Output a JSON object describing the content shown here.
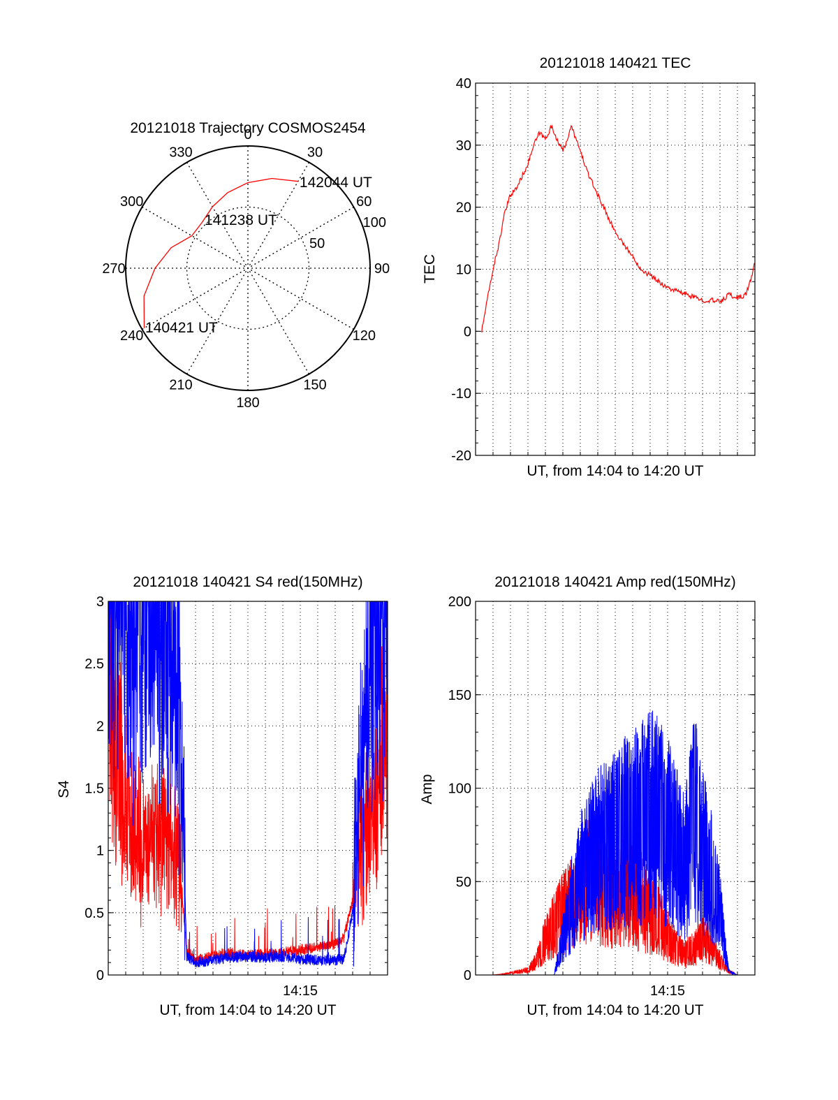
{
  "chart_data": [
    {
      "type": "polar",
      "title": "20121018 Trajectory COSMOS2454",
      "angle_labels": [
        "0",
        "30",
        "60",
        "90",
        "120",
        "150",
        "180",
        "210",
        "240",
        "270",
        "300",
        "330"
      ],
      "radius_labels": [
        "50",
        "100"
      ],
      "rlim": [
        0,
        100
      ],
      "grid": true,
      "series": [
        {
          "color": "#ff0000",
          "points": [
            {
              "az": 240,
              "r": 98
            },
            {
              "az": 255,
              "r": 88
            },
            {
              "az": 270,
              "r": 76
            },
            {
              "az": 285,
              "r": 65
            },
            {
              "az": 300,
              "r": 53
            },
            {
              "az": 315,
              "r": 53
            },
            {
              "az": 330,
              "r": 58
            },
            {
              "az": 345,
              "r": 64
            },
            {
              "az": 0,
              "r": 70
            },
            {
              "az": 15,
              "r": 76
            },
            {
              "az": 30,
              "r": 82
            }
          ]
        }
      ],
      "annotations": [
        {
          "text": "142044 UT",
          "az": 31,
          "r": 82
        },
        {
          "text": "141238 UT",
          "az": 318,
          "r": 53
        },
        {
          "text": "140421 UT",
          "az": 240,
          "r": 97
        }
      ]
    },
    {
      "type": "line",
      "title": "20121018 140421 TEC",
      "xlabel": "UT, from 14:04 to 14:20 UT",
      "ylabel": "TEC",
      "xlim": [
        "14:04",
        "14:20"
      ],
      "ylim": [
        -20,
        40
      ],
      "yticks": [
        "-20",
        "-10",
        "0",
        "10",
        "20",
        "30",
        "40"
      ],
      "grid": true,
      "series": [
        {
          "color": "#ff0000",
          "x": [
            "14:04:21",
            "14:04:40",
            "14:05:00",
            "14:05:20",
            "14:05:40",
            "14:06:00",
            "14:06:20",
            "14:06:40",
            "14:07:00",
            "14:07:20",
            "14:07:40",
            "14:08:00",
            "14:08:20",
            "14:08:40",
            "14:09:00",
            "14:09:30",
            "14:10:00",
            "14:10:30",
            "14:11:00",
            "14:11:30",
            "14:12:00",
            "14:12:30",
            "14:13:00",
            "14:13:30",
            "14:14:00",
            "14:14:30",
            "14:15:00",
            "14:15:30",
            "14:16:00",
            "14:16:30",
            "14:17:00",
            "14:17:30",
            "14:17:50",
            "14:18:10",
            "14:18:30",
            "14:18:50",
            "14:19:10",
            "14:19:30",
            "14:19:50",
            "14:20:00"
          ],
          "y": [
            0,
            5,
            10,
            14,
            19,
            22,
            23,
            25,
            27,
            30,
            32,
            31,
            33,
            31,
            29,
            33,
            29,
            25,
            22,
            19,
            16,
            14,
            12,
            10,
            9,
            8,
            7,
            6.5,
            6,
            5.5,
            5,
            5,
            4.8,
            5,
            6,
            5.5,
            5.5,
            6,
            9,
            11
          ]
        }
      ]
    },
    {
      "type": "line",
      "title": "20121018 140421 S4 red(150MHz)",
      "xlabel": "UT, from 14:04 to 14:20 UT",
      "ylabel": "S4",
      "xlim": [
        "14:04",
        "14:20"
      ],
      "ylim": [
        0,
        3
      ],
      "yticks": [
        "0",
        "0.5",
        "1",
        "1.5",
        "2",
        "2.5",
        "3"
      ],
      "xticks": [
        "14:15"
      ],
      "grid": true,
      "series": [
        {
          "color": "#ff0000",
          "x": [
            "14:04:00",
            "14:04:30",
            "14:05:00",
            "14:05:30",
            "14:06:00",
            "14:06:30",
            "14:07:00",
            "14:07:30",
            "14:08:00",
            "14:08:30",
            "14:09:00",
            "14:10:00",
            "14:11:00",
            "14:12:00",
            "14:13:00",
            "14:14:00",
            "14:15:00",
            "14:16:00",
            "14:17:00",
            "14:17:30",
            "14:18:00",
            "14:18:30",
            "14:19:00",
            "14:19:30",
            "14:20:00"
          ],
          "y": [
            2.2,
            1.8,
            1.4,
            1.2,
            1.1,
            1.05,
            1.1,
            1.2,
            1.0,
            0.2,
            0.12,
            0.15,
            0.18,
            0.16,
            0.17,
            0.18,
            0.2,
            0.22,
            0.25,
            0.3,
            0.6,
            1.0,
            1.3,
            1.6,
            1.9
          ]
        },
        {
          "color": "#0000ff",
          "x": [
            "14:04:00",
            "14:04:30",
            "14:05:00",
            "14:05:30",
            "14:06:00",
            "14:06:30",
            "14:07:00",
            "14:07:30",
            "14:08:00",
            "14:08:30",
            "14:09:00",
            "14:10:00",
            "14:11:00",
            "14:12:00",
            "14:13:00",
            "14:14:00",
            "14:15:00",
            "14:16:00",
            "14:17:00",
            "14:17:30",
            "14:18:00",
            "14:18:30",
            "14:19:00",
            "14:19:30",
            "14:20:00"
          ],
          "y": [
            2.8,
            2.9,
            2.9,
            2.8,
            2.9,
            2.9,
            2.7,
            2.8,
            2.5,
            0.15,
            0.1,
            0.12,
            0.14,
            0.15,
            0.14,
            0.15,
            0.13,
            0.12,
            0.12,
            0.13,
            0.5,
            1.5,
            2.6,
            2.9,
            2.9
          ]
        }
      ]
    },
    {
      "type": "line",
      "title": "20121018 140421 Amp red(150MHz)",
      "xlabel": "UT, from 14:04 to 14:20 UT",
      "ylabel": "Amp",
      "xlim": [
        "14:04",
        "14:20"
      ],
      "ylim": [
        0,
        200
      ],
      "yticks": [
        "0",
        "50",
        "100",
        "150",
        "200"
      ],
      "xticks": [
        "14:15"
      ],
      "grid": true,
      "series": [
        {
          "color": "#ff0000",
          "x": [
            "14:04:20",
            "14:05:00",
            "14:06:00",
            "14:07:00",
            "14:07:30",
            "14:08:00",
            "14:08:30",
            "14:09:00",
            "14:09:30",
            "14:10:00",
            "14:10:30",
            "14:11:00",
            "14:11:30",
            "14:12:00",
            "14:12:30",
            "14:13:00",
            "14:13:30",
            "14:14:00",
            "14:14:30",
            "14:15:00",
            "14:15:30",
            "14:16:00",
            "14:16:30",
            "14:17:00",
            "14:17:30",
            "14:18:00",
            "14:18:30",
            "14:19:00",
            "14:20:00"
          ],
          "y": [
            0,
            0,
            1,
            3,
            8,
            20,
            28,
            35,
            40,
            48,
            55,
            50,
            45,
            42,
            48,
            44,
            40,
            35,
            30,
            22,
            15,
            12,
            15,
            20,
            15,
            8,
            2,
            0,
            0
          ]
        },
        {
          "color": "#0000ff",
          "x": [
            "14:04:20",
            "14:05:00",
            "14:06:00",
            "14:07:00",
            "14:08:00",
            "14:08:30",
            "14:09:00",
            "14:09:30",
            "14:10:00",
            "14:10:30",
            "14:11:00",
            "14:11:30",
            "14:12:00",
            "14:12:30",
            "14:13:00",
            "14:13:30",
            "14:14:00",
            "14:14:30",
            "14:15:00",
            "14:15:30",
            "14:16:00",
            "14:16:30",
            "14:17:00",
            "14:17:30",
            "14:18:00",
            "14:18:30",
            "14:19:00",
            "14:20:00"
          ],
          "y": [
            0,
            0,
            0,
            0,
            0,
            0,
            20,
            40,
            55,
            62,
            70,
            72,
            75,
            80,
            82,
            85,
            90,
            88,
            80,
            70,
            60,
            90,
            70,
            55,
            35,
            2,
            0,
            0
          ]
        }
      ]
    }
  ]
}
